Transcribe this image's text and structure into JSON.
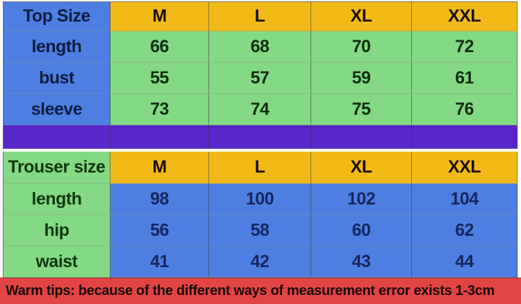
{
  "top_table": {
    "header": {
      "label": "Top Size",
      "sizes": [
        "M",
        "L",
        "XL",
        "XXL"
      ]
    },
    "rows": [
      {
        "label": "length",
        "values": [
          "66",
          "68",
          "70",
          "72"
        ]
      },
      {
        "label": "bust",
        "values": [
          "55",
          "57",
          "59",
          "61"
        ]
      },
      {
        "label": "sleeve",
        "values": [
          "73",
          "74",
          "75",
          "76"
        ]
      }
    ]
  },
  "trouser_table": {
    "header": {
      "label": "Trouser size",
      "sizes": [
        "M",
        "L",
        "XL",
        "XXL"
      ]
    },
    "rows": [
      {
        "label": "length",
        "values": [
          "98",
          "100",
          "102",
          "104"
        ]
      },
      {
        "label": "hip",
        "values": [
          "56",
          "58",
          "60",
          "62"
        ]
      },
      {
        "label": "waist",
        "values": [
          "41",
          "42",
          "43",
          "44"
        ]
      }
    ]
  },
  "footer": {
    "text": "Warm tips: because of the different ways of measurement error exists 1-3cm"
  },
  "colors": {
    "label_blue": "#4d7fe3",
    "value_green": "#84d984",
    "header_yellow": "#f2b917",
    "divider_purple": "#5826c9",
    "footer_red": "#e24444"
  },
  "chart_data": [
    {
      "type": "table",
      "title": "Top Size",
      "columns": [
        "Top Size",
        "M",
        "L",
        "XL",
        "XXL"
      ],
      "rows": [
        [
          "length",
          66,
          68,
          70,
          72
        ],
        [
          "bust",
          55,
          57,
          59,
          61
        ],
        [
          "sleeve",
          73,
          74,
          75,
          76
        ]
      ]
    },
    {
      "type": "table",
      "title": "Trouser size",
      "columns": [
        "Trouser size",
        "M",
        "L",
        "XL",
        "XXL"
      ],
      "rows": [
        [
          "length",
          98,
          100,
          102,
          104
        ],
        [
          "hip",
          56,
          58,
          60,
          62
        ],
        [
          "waist",
          41,
          42,
          43,
          44
        ]
      ],
      "note": "Warm tips: because of the different ways of measurement error exists 1-3cm"
    }
  ]
}
